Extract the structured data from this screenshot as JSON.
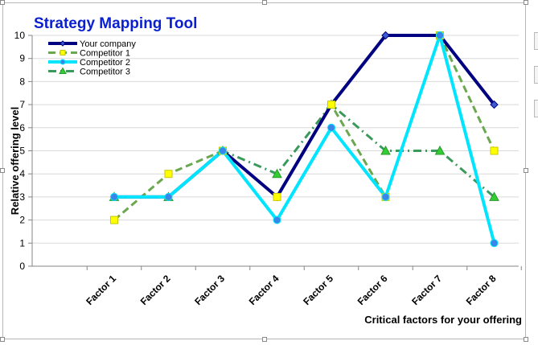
{
  "chart_data": {
    "type": "line",
    "title": "Strategy Mapping Tool",
    "xlabel": "Critical factors for your offering",
    "ylabel": "Relative offering level",
    "categories": [
      "Factor 1",
      "Factor 2",
      "Factor 3",
      "Factor 4",
      "Factor 5",
      "Factor 6",
      "Factor 7",
      "Factor 8"
    ],
    "ylim": [
      0,
      10
    ],
    "yticks": [
      0,
      1,
      2,
      3,
      4,
      5,
      6,
      7,
      8,
      9,
      10
    ],
    "grid": true,
    "legend_position": "top-left",
    "series": [
      {
        "name": "Your company",
        "values": [
          3,
          3,
          5,
          3,
          7,
          10,
          10,
          7
        ],
        "color": "#000080",
        "dash": "solid",
        "marker": "diamond",
        "marker_color": "#3d5bd1"
      },
      {
        "name": "Competitor 1",
        "values": [
          2,
          4,
          5,
          3,
          7,
          3,
          10,
          5
        ],
        "color": "#6aa84f",
        "dash": "dashed",
        "marker": "square",
        "marker_color": "#ffff00"
      },
      {
        "name": "Competitor 2",
        "values": [
          3,
          3,
          5,
          2,
          6,
          3,
          10,
          1
        ],
        "color": "#00e5ff",
        "dash": "solid",
        "marker": "circle",
        "marker_color": "#3a86e8"
      },
      {
        "name": "Competitor 3",
        "values": [
          3,
          3,
          5,
          4,
          7,
          5,
          5,
          3
        ],
        "color": "#3a9a5b",
        "dash": "dash-dot",
        "marker": "triangle",
        "marker_color": "#33cc33"
      }
    ]
  }
}
